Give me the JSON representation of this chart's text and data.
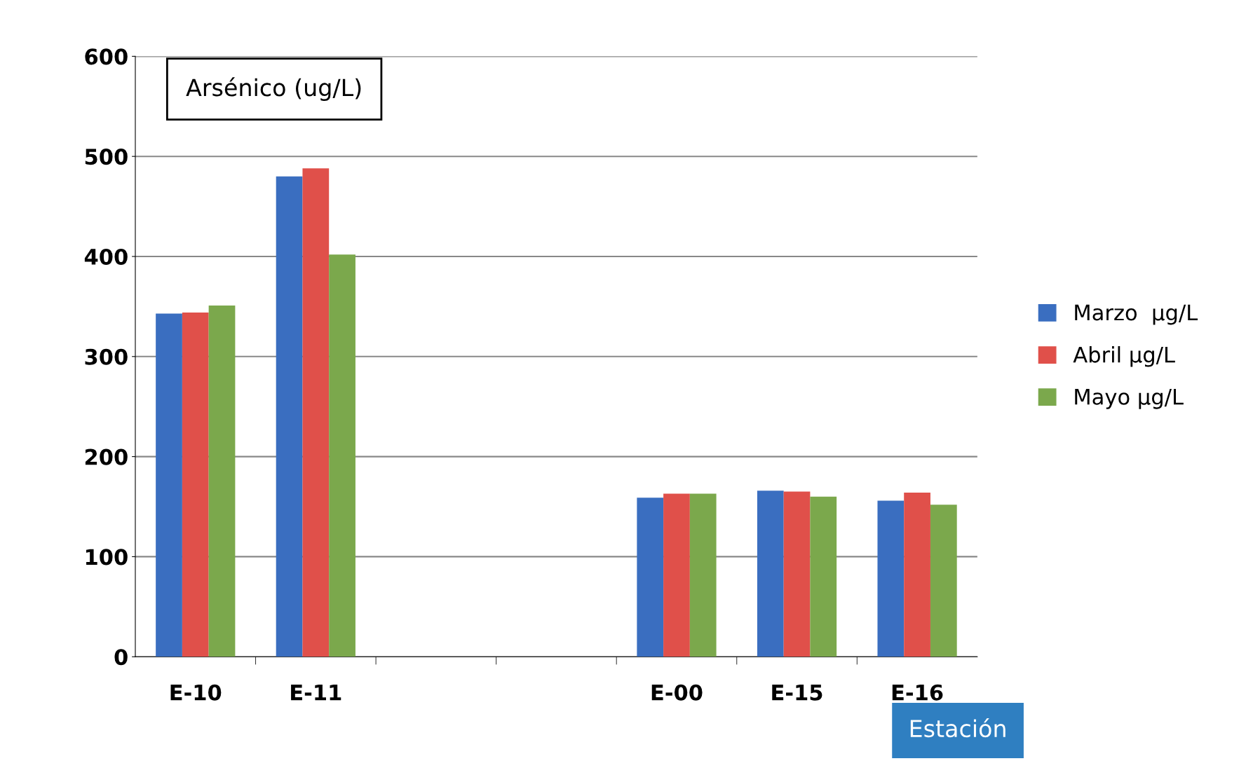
{
  "chart_data": {
    "type": "bar",
    "title": "Arsénico (ug/L)",
    "xlabel": "Estación",
    "categories": [
      "E-10",
      "E-11",
      null,
      null,
      "E-00",
      "E-15",
      "E-16"
    ],
    "series": [
      {
        "name": "Marzo  µg/L",
        "color": "#3a6ec0",
        "values": [
          343,
          480,
          null,
          null,
          159,
          166,
          156
        ]
      },
      {
        "name": "Abril µg/L",
        "color": "#e0504a",
        "values": [
          344,
          488,
          null,
          null,
          163,
          165,
          164
        ]
      },
      {
        "name": "Mayo µg/L",
        "color": "#7ba84c",
        "values": [
          351,
          402,
          null,
          null,
          163,
          160,
          152
        ]
      }
    ],
    "ylim": [
      0,
      600
    ],
    "yticks": [
      0,
      100,
      200,
      300,
      400,
      500,
      600
    ],
    "grid": "y",
    "legend": "right"
  }
}
